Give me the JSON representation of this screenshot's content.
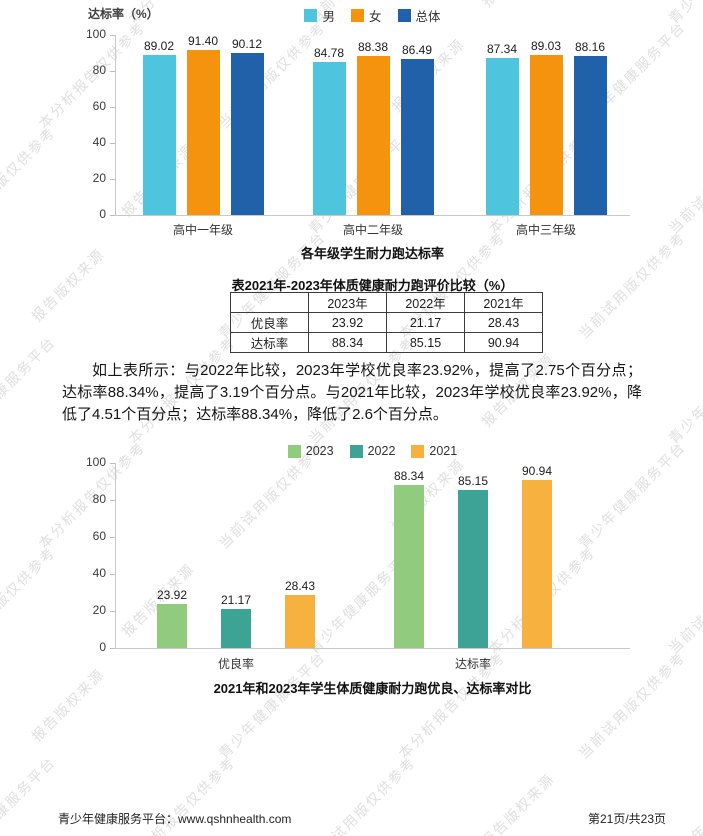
{
  "page": {
    "footer_left": "青少年健康服务平台：www.qshnhealth.com",
    "footer_right": "第21页/共23页"
  },
  "watermark": {
    "phrases": [
      "青少年健康服务平台",
      "本分析报告仅供参考",
      "当前试用版仅供参考",
      "报告版权来源"
    ],
    "color": "#e0e0e0"
  },
  "paragraph": "如上表所示：与2022年比较，2023年学校优良率23.92%，提高了2.75个百分点；达标率88.34%，提高了3.19个百分点。与2021年比较，2023年学校优良率23.92%，降低了4.51个百分点；达标率88.34%，降低了2.6个百分点。",
  "table": {
    "title": "表2021年-2023年体质健康耐力跑评价比较（%）",
    "columns": [
      "",
      "2023年",
      "2022年",
      "2021年"
    ],
    "rows": [
      {
        "label": "优良率",
        "values": [
          "23.92",
          "21.17",
          "28.43"
        ]
      },
      {
        "label": "达标率",
        "values": [
          "88.34",
          "85.15",
          "90.94"
        ]
      }
    ]
  },
  "chart_data": [
    {
      "type": "bar",
      "title": "各年级学生耐力跑达标率",
      "ylabel": "达标率（%）",
      "categories": [
        "高中一年级",
        "高中二年级",
        "高中三年级"
      ],
      "series": [
        {
          "name": "男",
          "color": "#4FC4DF",
          "values": [
            89.02,
            84.78,
            87.34
          ]
        },
        {
          "name": "女",
          "color": "#F5920E",
          "values": [
            91.4,
            88.38,
            89.03
          ]
        },
        {
          "name": "总体",
          "color": "#2161A9",
          "values": [
            90.12,
            86.49,
            88.16
          ]
        }
      ],
      "ylim": [
        0,
        100
      ],
      "yticks": [
        0,
        20,
        40,
        60,
        80,
        100
      ],
      "legend_position": "top",
      "grid": false
    },
    {
      "type": "bar",
      "title": "2021年和2023年学生体质健康耐力跑优良、达标率对比",
      "ylabel": "",
      "categories": [
        "优良率",
        "达标率"
      ],
      "series": [
        {
          "name": "2023",
          "color": "#90CB7E",
          "values": [
            23.92,
            88.34
          ]
        },
        {
          "name": "2022",
          "color": "#3DA495",
          "values": [
            21.17,
            85.15
          ]
        },
        {
          "name": "2021",
          "color": "#F6B13E",
          "values": [
            28.43,
            90.94
          ]
        }
      ],
      "ylim": [
        0,
        100
      ],
      "yticks": [
        0,
        20,
        40,
        60,
        80,
        100
      ],
      "legend_position": "top",
      "grid": false
    }
  ]
}
